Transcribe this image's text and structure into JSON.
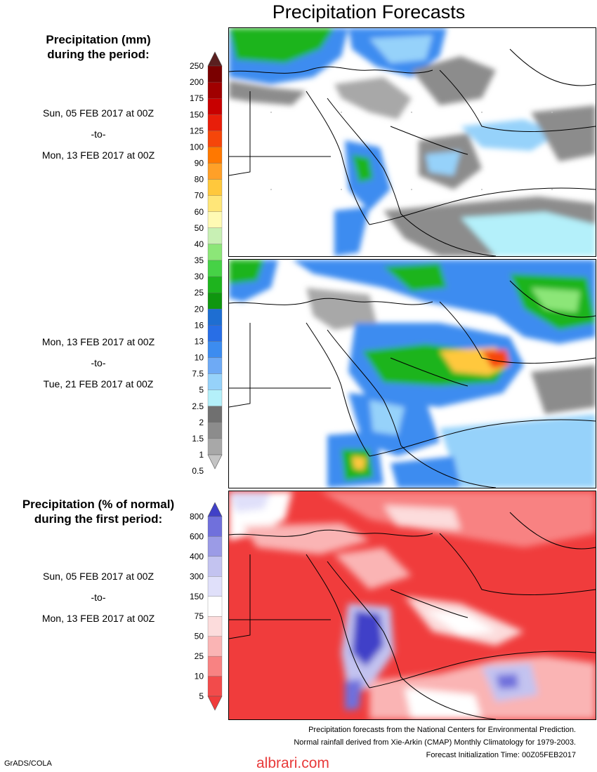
{
  "title": "Precipitation Forecasts",
  "left_labels": {
    "precip_heading_line1": "Precipitation (mm)",
    "precip_heading_line2": "during the period:",
    "period1_start": "Sun, 05 FEB 2017 at 00Z",
    "period1_to": "-to-",
    "period1_end": "Mon, 13 FEB 2017 at 00Z",
    "period2_start": "Mon, 13 FEB 2017 at 00Z",
    "period2_to": "-to-",
    "period2_end": "Tue, 21 FEB 2017 at 00Z",
    "pct_heading_line1": "Precipitation (% of normal)",
    "pct_heading_line2": "during the first period:",
    "period3_start": "Sun, 05 FEB 2017 at 00Z",
    "period3_to": "-to-",
    "period3_end": "Mon, 13 FEB 2017 at 00Z"
  },
  "footer": {
    "line1": "Precipitation forecasts from the National Centers for Environmental Prediction.",
    "line2": "Normal rainfall derived from Xie-Arkin (CMAP) Monthly Climatology for 1979-2003.",
    "line3": "Forecast Initialization Time: 00Z05FEB2017",
    "grads": "GrADS/COLA",
    "brand": "albrari.com"
  },
  "chart_data": [
    {
      "type": "heatmap",
      "name": "precip_mm_colorbar",
      "tick_labels": [
        "250",
        "200",
        "175",
        "150",
        "125",
        "100",
        "90",
        "80",
        "70",
        "60",
        "50",
        "40",
        "35",
        "30",
        "25",
        "20",
        "16",
        "13",
        "10",
        "7.5",
        "5",
        "2.5",
        "2",
        "1.5",
        "1",
        "0.5"
      ],
      "colors": [
        "#5a1f1f",
        "#7a0000",
        "#a00000",
        "#c80000",
        "#e81e0a",
        "#f5460a",
        "#ff7800",
        "#ffa028",
        "#ffc83c",
        "#ffe678",
        "#fffab4",
        "#c8f0b4",
        "#8ce678",
        "#46d246",
        "#1eb41e",
        "#0f960f",
        "#1e6ed2",
        "#286ee6",
        "#3c8cf0",
        "#6eaaf5",
        "#96d2fa",
        "#b4f0fa",
        "#707070",
        "#8c8c8c",
        "#a8a8a8",
        "#c4c4c4"
      ]
    },
    {
      "type": "heatmap",
      "name": "precip_pct_colorbar",
      "tick_labels": [
        "800",
        "600",
        "400",
        "300",
        "150",
        "75",
        "50",
        "25",
        "10",
        "5"
      ],
      "colors": [
        "#4040c8",
        "#7070dc",
        "#9b9be6",
        "#c3c3f0",
        "#e0e0fa",
        "#ffffff",
        "#fcdcdc",
        "#fab4b4",
        "#f88282",
        "#f24b4b",
        "#f03c3c"
      ]
    }
  ]
}
